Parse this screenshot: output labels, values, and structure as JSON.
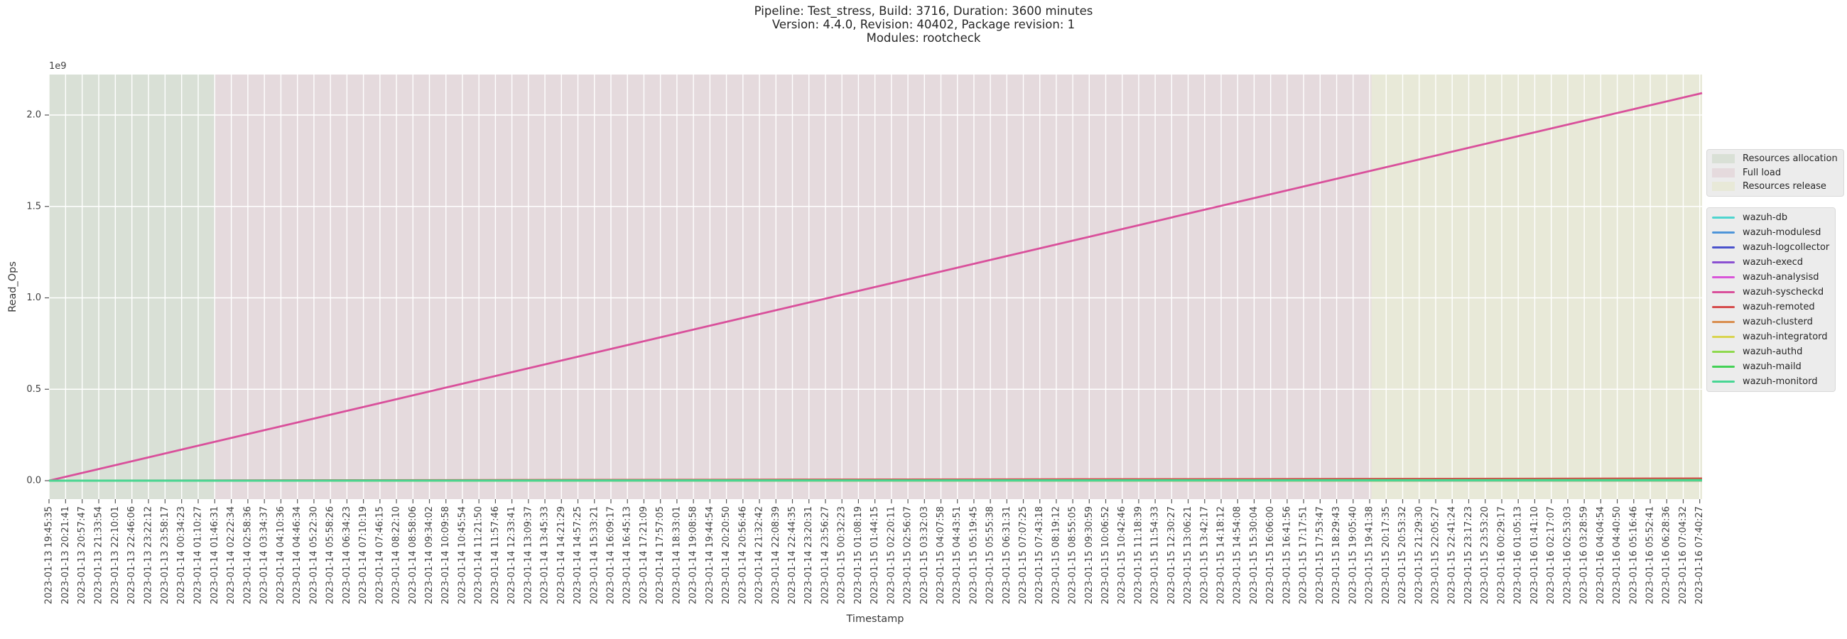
{
  "title": {
    "line1": "Pipeline: Test_stress, Build: 3716, Duration: 3600 minutes",
    "line2": "Version: 4.4.0, Revision: 40402, Package revision: 1",
    "line3": "Modules: rootcheck"
  },
  "chart_data": {
    "type": "line",
    "title": "Pipeline: Test_stress, Build: 3716, Duration: 3600 minutes / Version: 4.4.0, Revision: 40402, Package revision: 1 / Modules: rootcheck",
    "xlabel": "Timestamp",
    "ylabel": "Read_Ops",
    "y_offset_label": "1e9",
    "y_ticks": [
      "0.0",
      "0.5",
      "1.0",
      "1.5",
      "2.0"
    ],
    "ylim": [
      -105000000,
      2222000000
    ],
    "grid": true,
    "legend_position": "right",
    "duration_minutes": 3600,
    "phases": [
      {
        "label": "Resources allocation",
        "color": "#d9e0d6",
        "start_hour": 0,
        "end_hour": 6
      },
      {
        "label": "Full load",
        "color": "#e5dadd",
        "start_hour": 6,
        "end_hour": 48
      },
      {
        "label": "Resources release",
        "color": "#e8e9d8",
        "start_hour": 48,
        "end_hour": 60
      }
    ],
    "series_shape": "linear",
    "series": [
      {
        "name": "wazuh-db",
        "color": "#4ed5cf",
        "start_value": 0,
        "end_value": 1000000
      },
      {
        "name": "wazuh-modulesd",
        "color": "#4e95d9",
        "start_value": 0,
        "end_value": 1000000
      },
      {
        "name": "wazuh-logcollector",
        "color": "#4a52cc",
        "start_value": 0,
        "end_value": 1000000
      },
      {
        "name": "wazuh-execd",
        "color": "#8a50d1",
        "start_value": 0,
        "end_value": 1000000
      },
      {
        "name": "wazuh-analysisd",
        "color": "#d955d9",
        "start_value": 0,
        "end_value": 1000000
      },
      {
        "name": "wazuh-syscheckd",
        "color": "#d9509b",
        "start_value": 0,
        "end_value": 2120000000
      },
      {
        "name": "wazuh-remoted",
        "color": "#d64c4c",
        "start_value": 0,
        "end_value": 12000000
      },
      {
        "name": "wazuh-clusterd",
        "color": "#d98e4e",
        "start_value": 0,
        "end_value": 1000000
      },
      {
        "name": "wazuh-integratord",
        "color": "#d9d44e",
        "start_value": 0,
        "end_value": 1000000
      },
      {
        "name": "wazuh-authd",
        "color": "#8fd94e",
        "start_value": 0,
        "end_value": 1000000
      },
      {
        "name": "wazuh-maild",
        "color": "#43d155",
        "start_value": 0,
        "end_value": 4000000
      },
      {
        "name": "wazuh-monitord",
        "color": "#48d694",
        "start_value": 0,
        "end_value": 2000000
      }
    ],
    "x_tick_labels": [
      "2023-01-13 19:45:35",
      "2023-01-13 20:21:41",
      "2023-01-13 20:57:47",
      "2023-01-13 21:33:54",
      "2023-01-13 22:10:01",
      "2023-01-13 22:46:06",
      "2023-01-13 23:22:12",
      "2023-01-13 23:58:17",
      "2023-01-14 00:34:23",
      "2023-01-14 01:10:27",
      "2023-01-14 01:46:31",
      "2023-01-14 02:22:34",
      "2023-01-14 02:58:36",
      "2023-01-14 03:34:37",
      "2023-01-14 04:10:36",
      "2023-01-14 04:46:34",
      "2023-01-14 05:22:30",
      "2023-01-14 05:58:26",
      "2023-01-14 06:34:23",
      "2023-01-14 07:10:19",
      "2023-01-14 07:46:15",
      "2023-01-14 08:22:10",
      "2023-01-14 08:58:06",
      "2023-01-14 09:34:02",
      "2023-01-14 10:09:58",
      "2023-01-14 10:45:54",
      "2023-01-14 11:21:50",
      "2023-01-14 11:57:46",
      "2023-01-14 12:33:41",
      "2023-01-14 13:09:37",
      "2023-01-14 13:45:33",
      "2023-01-14 14:21:29",
      "2023-01-14 14:57:25",
      "2023-01-14 15:33:21",
      "2023-01-14 16:09:17",
      "2023-01-14 16:45:13",
      "2023-01-14 17:21:09",
      "2023-01-14 17:57:05",
      "2023-01-14 18:33:01",
      "2023-01-14 19:08:58",
      "2023-01-14 19:44:54",
      "2023-01-14 20:20:50",
      "2023-01-14 20:56:46",
      "2023-01-14 21:32:42",
      "2023-01-14 22:08:39",
      "2023-01-14 22:44:35",
      "2023-01-14 23:20:31",
      "2023-01-14 23:56:27",
      "2023-01-15 00:32:23",
      "2023-01-15 01:08:19",
      "2023-01-15 01:44:15",
      "2023-01-15 02:20:11",
      "2023-01-15 02:56:07",
      "2023-01-15 03:32:03",
      "2023-01-15 04:07:58",
      "2023-01-15 04:43:51",
      "2023-01-15 05:19:45",
      "2023-01-15 05:55:38",
      "2023-01-15 06:31:31",
      "2023-01-15 07:07:25",
      "2023-01-15 07:43:18",
      "2023-01-15 08:19:12",
      "2023-01-15 08:55:05",
      "2023-01-15 09:30:59",
      "2023-01-15 10:06:52",
      "2023-01-15 10:42:46",
      "2023-01-15 11:18:39",
      "2023-01-15 11:54:33",
      "2023-01-15 12:30:27",
      "2023-01-15 13:06:21",
      "2023-01-15 13:42:17",
      "2023-01-15 14:18:12",
      "2023-01-15 14:54:08",
      "2023-01-15 15:30:04",
      "2023-01-15 16:06:00",
      "2023-01-15 16:41:56",
      "2023-01-15 17:17:51",
      "2023-01-15 17:53:47",
      "2023-01-15 18:29:43",
      "2023-01-15 19:05:40",
      "2023-01-15 19:41:38",
      "2023-01-15 20:17:35",
      "2023-01-15 20:53:32",
      "2023-01-15 21:29:30",
      "2023-01-15 22:05:27",
      "2023-01-15 22:41:24",
      "2023-01-15 23:17:23",
      "2023-01-15 23:53:20",
      "2023-01-16 00:29:17",
      "2023-01-16 01:05:13",
      "2023-01-16 01:41:10",
      "2023-01-16 02:17:07",
      "2023-01-16 02:53:03",
      "2023-01-16 03:28:59",
      "2023-01-16 04:04:54",
      "2023-01-16 04:40:50",
      "2023-01-16 05:16:46",
      "2023-01-16 05:52:41",
      "2023-01-16 06:28:36",
      "2023-01-16 07:04:32",
      "2023-01-16 07:40:27"
    ]
  }
}
